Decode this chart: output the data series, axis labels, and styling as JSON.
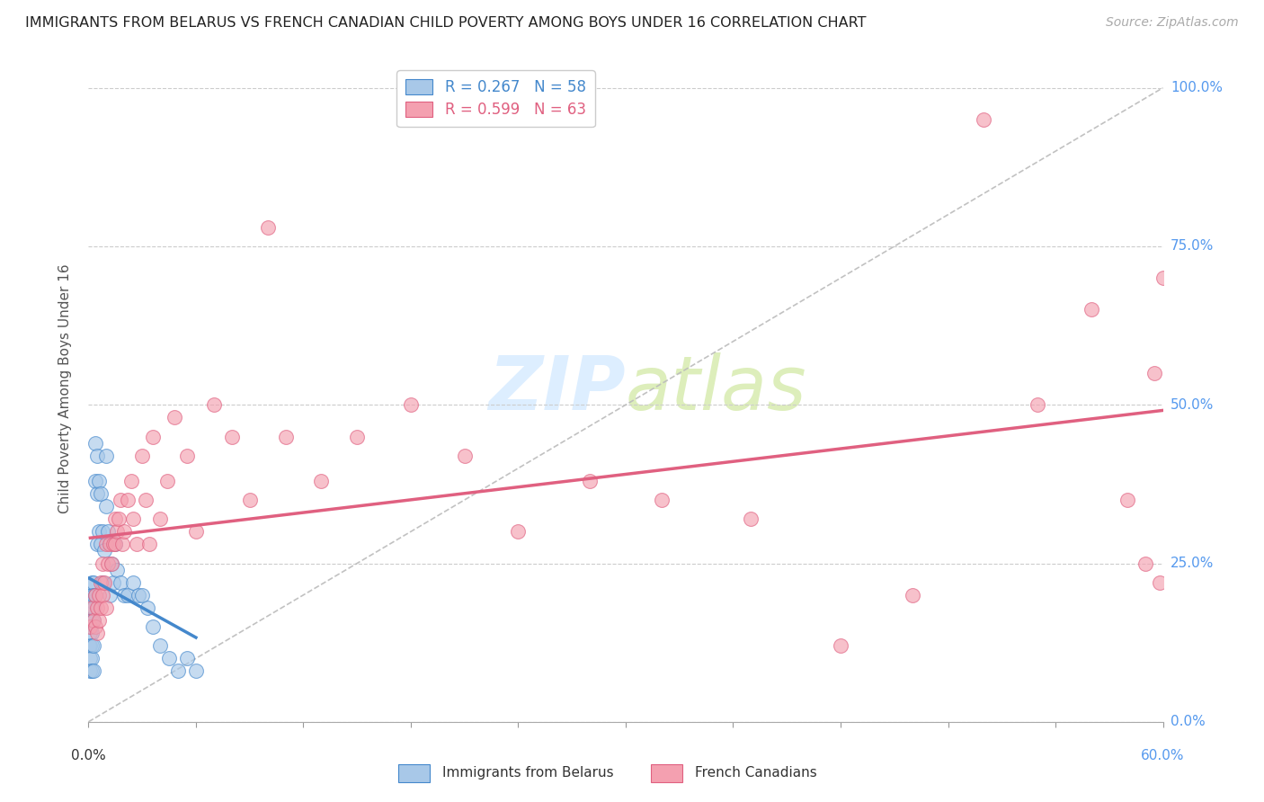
{
  "title": "IMMIGRANTS FROM BELARUS VS FRENCH CANADIAN CHILD POVERTY AMONG BOYS UNDER 16 CORRELATION CHART",
  "source": "Source: ZipAtlas.com",
  "ylabel": "Child Poverty Among Boys Under 16",
  "legend1_label": "R = 0.267   N = 58",
  "legend2_label": "R = 0.599   N = 63",
  "legend1_r": "0.267",
  "legend1_n": "58",
  "legend2_r": "0.599",
  "legend2_n": "63",
  "color_blue": "#a8c8e8",
  "color_pink": "#f4a0b0",
  "color_blue_line": "#4488cc",
  "color_pink_line": "#e06080",
  "color_diagonal": "#bbbbbb",
  "xlim": [
    0.0,
    0.6
  ],
  "ylim": [
    0.0,
    1.05
  ],
  "yticks": [
    0.0,
    0.25,
    0.5,
    0.75,
    1.0
  ],
  "ytick_labels": [
    "0.0%",
    "25.0%",
    "50.0%",
    "75.0%",
    "100.0%"
  ],
  "xtick_left_label": "0.0%",
  "xtick_right_label": "60.0%",
  "bottom_legend_label1": "Immigrants from Belarus",
  "bottom_legend_label2": "French Canadians",
  "belarus_x": [
    0.0005,
    0.001,
    0.001,
    0.001,
    0.001,
    0.001,
    0.001,
    0.0015,
    0.0015,
    0.002,
    0.002,
    0.002,
    0.002,
    0.002,
    0.002,
    0.002,
    0.002,
    0.0025,
    0.003,
    0.003,
    0.003,
    0.003,
    0.003,
    0.003,
    0.004,
    0.004,
    0.004,
    0.005,
    0.005,
    0.005,
    0.006,
    0.006,
    0.007,
    0.007,
    0.008,
    0.008,
    0.009,
    0.01,
    0.01,
    0.011,
    0.012,
    0.013,
    0.014,
    0.015,
    0.016,
    0.018,
    0.02,
    0.022,
    0.025,
    0.028,
    0.03,
    0.033,
    0.036,
    0.04,
    0.045,
    0.05,
    0.055,
    0.06
  ],
  "belarus_y": [
    0.12,
    0.18,
    0.16,
    0.14,
    0.12,
    0.1,
    0.08,
    0.2,
    0.15,
    0.22,
    0.2,
    0.18,
    0.16,
    0.14,
    0.12,
    0.1,
    0.08,
    0.19,
    0.22,
    0.2,
    0.18,
    0.16,
    0.12,
    0.08,
    0.44,
    0.38,
    0.2,
    0.42,
    0.36,
    0.28,
    0.38,
    0.3,
    0.36,
    0.28,
    0.3,
    0.22,
    0.27,
    0.42,
    0.34,
    0.3,
    0.2,
    0.25,
    0.22,
    0.28,
    0.24,
    0.22,
    0.2,
    0.2,
    0.22,
    0.2,
    0.2,
    0.18,
    0.15,
    0.12,
    0.1,
    0.08,
    0.1,
    0.08
  ],
  "french_x": [
    0.001,
    0.002,
    0.003,
    0.004,
    0.004,
    0.005,
    0.005,
    0.006,
    0.006,
    0.007,
    0.007,
    0.008,
    0.008,
    0.009,
    0.01,
    0.01,
    0.011,
    0.012,
    0.013,
    0.014,
    0.015,
    0.015,
    0.016,
    0.017,
    0.018,
    0.019,
    0.02,
    0.022,
    0.024,
    0.025,
    0.027,
    0.03,
    0.032,
    0.034,
    0.036,
    0.04,
    0.044,
    0.048,
    0.055,
    0.06,
    0.07,
    0.08,
    0.09,
    0.1,
    0.11,
    0.13,
    0.15,
    0.18,
    0.21,
    0.24,
    0.28,
    0.32,
    0.37,
    0.42,
    0.46,
    0.5,
    0.53,
    0.56,
    0.58,
    0.59,
    0.595,
    0.598,
    0.6
  ],
  "french_y": [
    0.15,
    0.18,
    0.16,
    0.2,
    0.15,
    0.18,
    0.14,
    0.2,
    0.16,
    0.22,
    0.18,
    0.25,
    0.2,
    0.22,
    0.28,
    0.18,
    0.25,
    0.28,
    0.25,
    0.28,
    0.32,
    0.28,
    0.3,
    0.32,
    0.35,
    0.28,
    0.3,
    0.35,
    0.38,
    0.32,
    0.28,
    0.42,
    0.35,
    0.28,
    0.45,
    0.32,
    0.38,
    0.48,
    0.42,
    0.3,
    0.5,
    0.45,
    0.35,
    0.78,
    0.45,
    0.38,
    0.45,
    0.5,
    0.42,
    0.3,
    0.38,
    0.35,
    0.32,
    0.12,
    0.2,
    0.95,
    0.5,
    0.65,
    0.35,
    0.25,
    0.55,
    0.22,
    0.7
  ]
}
